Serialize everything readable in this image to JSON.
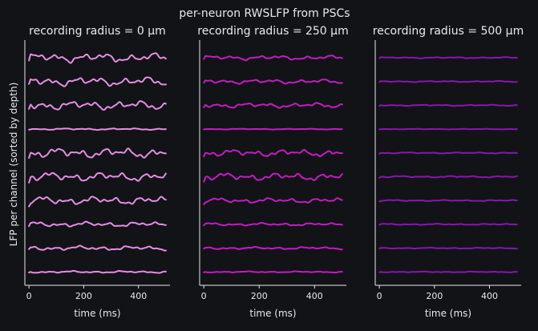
{
  "figure": {
    "suptitle": "per-neuron RWSLFP from PSCs",
    "ylabel": "LFP per channel (sorted by depth)"
  },
  "chart_data": [
    {
      "type": "line",
      "title": "recording radius = 0 μm",
      "xlabel": "time (ms)",
      "xticks": [
        "0",
        "200",
        "400"
      ],
      "xlim": [
        -15,
        515
      ],
      "color": "#e68ce6",
      "n_channels": 10,
      "series_amplitude": [
        4.5,
        4.5,
        4.5,
        0.8,
        5.0,
        4.5,
        4.0,
        2.5,
        2.2,
        1.0
      ],
      "grid": false,
      "y_ticks_visible": false
    },
    {
      "type": "line",
      "title": "recording radius = 250 μm",
      "xlabel": "time (ms)",
      "xticks": [
        "0",
        "200",
        "400"
      ],
      "xlim": [
        -15,
        515
      ],
      "color": "#c61ac6",
      "n_channels": 10,
      "series_amplitude": [
        2.2,
        2.2,
        2.5,
        0.4,
        3.5,
        3.8,
        2.5,
        1.4,
        1.2,
        0.6
      ],
      "grid": false,
      "y_ticks_visible": false
    },
    {
      "type": "line",
      "title": "recording radius = 500 μm",
      "xlabel": "time (ms)",
      "xticks": [
        "0",
        "200",
        "400"
      ],
      "xlim": [
        -15,
        515
      ],
      "color": "#8a14b4",
      "n_channels": 10,
      "series_amplitude": [
        0.6,
        0.6,
        0.6,
        0.3,
        0.6,
        0.8,
        0.6,
        0.6,
        0.5,
        0.4
      ],
      "grid": false,
      "y_ticks_visible": false
    }
  ]
}
